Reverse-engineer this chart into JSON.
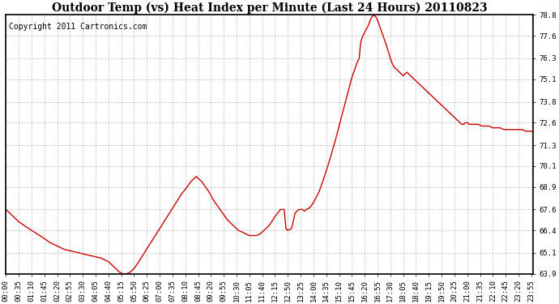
{
  "title": "Outdoor Temp (vs) Heat Index per Minute (Last 24 Hours) 20110823",
  "copyright": "Copyright 2011 Cartronics.com",
  "line_color": "#cc0000",
  "bg_color": "#ffffff",
  "plot_bg_color": "#ffffff",
  "grid_color": "#bbbbbb",
  "border_color": "#000000",
  "yticks": [
    63.9,
    65.1,
    66.4,
    67.6,
    68.9,
    70.1,
    71.3,
    72.6,
    73.8,
    75.1,
    76.3,
    77.6,
    78.8
  ],
  "ylim": [
    63.9,
    78.8
  ],
  "title_fontsize": 10,
  "copyright_fontsize": 7,
  "tick_fontsize": 6.5,
  "segments": [
    {
      "t": 0,
      "v": 67.6
    },
    {
      "t": 5,
      "v": 67.5
    },
    {
      "t": 10,
      "v": 67.4
    },
    {
      "t": 20,
      "v": 67.2
    },
    {
      "t": 35,
      "v": 66.9
    },
    {
      "t": 55,
      "v": 66.6
    },
    {
      "t": 70,
      "v": 66.4
    },
    {
      "t": 85,
      "v": 66.2
    },
    {
      "t": 100,
      "v": 66.0
    },
    {
      "t": 120,
      "v": 65.7
    },
    {
      "t": 140,
      "v": 65.5
    },
    {
      "t": 160,
      "v": 65.3
    },
    {
      "t": 180,
      "v": 65.2
    },
    {
      "t": 200,
      "v": 65.1
    },
    {
      "t": 220,
      "v": 65.0
    },
    {
      "t": 240,
      "v": 64.9
    },
    {
      "t": 260,
      "v": 64.8
    },
    {
      "t": 270,
      "v": 64.7
    },
    {
      "t": 280,
      "v": 64.6
    },
    {
      "t": 290,
      "v": 64.4
    },
    {
      "t": 300,
      "v": 64.2
    },
    {
      "t": 310,
      "v": 64.0
    },
    {
      "t": 315,
      "v": 63.95
    },
    {
      "t": 320,
      "v": 63.9
    },
    {
      "t": 325,
      "v": 63.9
    },
    {
      "t": 330,
      "v": 63.9
    },
    {
      "t": 340,
      "v": 64.0
    },
    {
      "t": 350,
      "v": 64.2
    },
    {
      "t": 360,
      "v": 64.5
    },
    {
      "t": 375,
      "v": 65.0
    },
    {
      "t": 390,
      "v": 65.5
    },
    {
      "t": 405,
      "v": 66.0
    },
    {
      "t": 420,
      "v": 66.5
    },
    {
      "t": 435,
      "v": 67.0
    },
    {
      "t": 450,
      "v": 67.5
    },
    {
      "t": 465,
      "v": 68.0
    },
    {
      "t": 480,
      "v": 68.5
    },
    {
      "t": 495,
      "v": 68.9
    },
    {
      "t": 505,
      "v": 69.2
    },
    {
      "t": 515,
      "v": 69.4
    },
    {
      "t": 520,
      "v": 69.5
    },
    {
      "t": 525,
      "v": 69.4
    },
    {
      "t": 535,
      "v": 69.2
    },
    {
      "t": 545,
      "v": 68.9
    },
    {
      "t": 555,
      "v": 68.6
    },
    {
      "t": 565,
      "v": 68.2
    },
    {
      "t": 575,
      "v": 67.9
    },
    {
      "t": 585,
      "v": 67.6
    },
    {
      "t": 595,
      "v": 67.3
    },
    {
      "t": 605,
      "v": 67.0
    },
    {
      "t": 615,
      "v": 66.8
    },
    {
      "t": 625,
      "v": 66.6
    },
    {
      "t": 635,
      "v": 66.4
    },
    {
      "t": 645,
      "v": 66.3
    },
    {
      "t": 655,
      "v": 66.2
    },
    {
      "t": 665,
      "v": 66.1
    },
    {
      "t": 675,
      "v": 66.1
    },
    {
      "t": 685,
      "v": 66.1
    },
    {
      "t": 695,
      "v": 66.2
    },
    {
      "t": 705,
      "v": 66.4
    },
    {
      "t": 720,
      "v": 66.7
    },
    {
      "t": 735,
      "v": 67.2
    },
    {
      "t": 750,
      "v": 67.6
    },
    {
      "t": 760,
      "v": 67.6
    },
    {
      "t": 765,
      "v": 66.5
    },
    {
      "t": 770,
      "v": 66.4
    },
    {
      "t": 780,
      "v": 66.5
    },
    {
      "t": 790,
      "v": 67.4
    },
    {
      "t": 800,
      "v": 67.6
    },
    {
      "t": 810,
      "v": 67.6
    },
    {
      "t": 815,
      "v": 67.5
    },
    {
      "t": 820,
      "v": 67.6
    },
    {
      "t": 830,
      "v": 67.7
    },
    {
      "t": 840,
      "v": 68.0
    },
    {
      "t": 855,
      "v": 68.6
    },
    {
      "t": 870,
      "v": 69.5
    },
    {
      "t": 885,
      "v": 70.5
    },
    {
      "t": 900,
      "v": 71.6
    },
    {
      "t": 915,
      "v": 72.8
    },
    {
      "t": 930,
      "v": 74.0
    },
    {
      "t": 945,
      "v": 75.2
    },
    {
      "t": 955,
      "v": 75.8
    },
    {
      "t": 960,
      "v": 76.1
    },
    {
      "t": 965,
      "v": 76.3
    },
    {
      "t": 968,
      "v": 77.0
    },
    {
      "t": 970,
      "v": 77.3
    },
    {
      "t": 975,
      "v": 77.6
    },
    {
      "t": 980,
      "v": 77.8
    },
    {
      "t": 985,
      "v": 78.0
    },
    {
      "t": 990,
      "v": 78.2
    },
    {
      "t": 995,
      "v": 78.5
    },
    {
      "t": 1000,
      "v": 78.7
    },
    {
      "t": 1005,
      "v": 78.8
    },
    {
      "t": 1010,
      "v": 78.7
    },
    {
      "t": 1015,
      "v": 78.5
    },
    {
      "t": 1020,
      "v": 78.2
    },
    {
      "t": 1025,
      "v": 77.9
    },
    {
      "t": 1030,
      "v": 77.6
    },
    {
      "t": 1035,
      "v": 77.3
    },
    {
      "t": 1040,
      "v": 77.0
    },
    {
      "t": 1050,
      "v": 76.3
    },
    {
      "t": 1055,
      "v": 76.0
    },
    {
      "t": 1060,
      "v": 75.8
    },
    {
      "t": 1065,
      "v": 75.7
    },
    {
      "t": 1070,
      "v": 75.6
    },
    {
      "t": 1075,
      "v": 75.5
    },
    {
      "t": 1080,
      "v": 75.4
    },
    {
      "t": 1085,
      "v": 75.3
    },
    {
      "t": 1090,
      "v": 75.4
    },
    {
      "t": 1095,
      "v": 75.5
    },
    {
      "t": 1100,
      "v": 75.4
    },
    {
      "t": 1105,
      "v": 75.3
    },
    {
      "t": 1110,
      "v": 75.2
    },
    {
      "t": 1115,
      "v": 75.1
    },
    {
      "t": 1120,
      "v": 75.0
    },
    {
      "t": 1130,
      "v": 74.8
    },
    {
      "t": 1140,
      "v": 74.6
    },
    {
      "t": 1150,
      "v": 74.4
    },
    {
      "t": 1160,
      "v": 74.2
    },
    {
      "t": 1170,
      "v": 74.0
    },
    {
      "t": 1180,
      "v": 73.8
    },
    {
      "t": 1190,
      "v": 73.6
    },
    {
      "t": 1200,
      "v": 73.4
    },
    {
      "t": 1210,
      "v": 73.2
    },
    {
      "t": 1220,
      "v": 73.0
    },
    {
      "t": 1230,
      "v": 72.8
    },
    {
      "t": 1240,
      "v": 72.6
    },
    {
      "t": 1245,
      "v": 72.5
    },
    {
      "t": 1248,
      "v": 72.5
    },
    {
      "t": 1250,
      "v": 72.5
    },
    {
      "t": 1255,
      "v": 72.6
    },
    {
      "t": 1260,
      "v": 72.6
    },
    {
      "t": 1265,
      "v": 72.5
    },
    {
      "t": 1270,
      "v": 72.5
    },
    {
      "t": 1275,
      "v": 72.5
    },
    {
      "t": 1280,
      "v": 72.5
    },
    {
      "t": 1285,
      "v": 72.5
    },
    {
      "t": 1290,
      "v": 72.5
    },
    {
      "t": 1300,
      "v": 72.4
    },
    {
      "t": 1310,
      "v": 72.4
    },
    {
      "t": 1320,
      "v": 72.4
    },
    {
      "t": 1330,
      "v": 72.3
    },
    {
      "t": 1340,
      "v": 72.3
    },
    {
      "t": 1350,
      "v": 72.3
    },
    {
      "t": 1360,
      "v": 72.2
    },
    {
      "t": 1370,
      "v": 72.2
    },
    {
      "t": 1380,
      "v": 72.2
    },
    {
      "t": 1390,
      "v": 72.2
    },
    {
      "t": 1400,
      "v": 72.2
    },
    {
      "t": 1410,
      "v": 72.2
    },
    {
      "t": 1420,
      "v": 72.1
    },
    {
      "t": 1430,
      "v": 72.1
    },
    {
      "t": 1440,
      "v": 72.1
    }
  ]
}
